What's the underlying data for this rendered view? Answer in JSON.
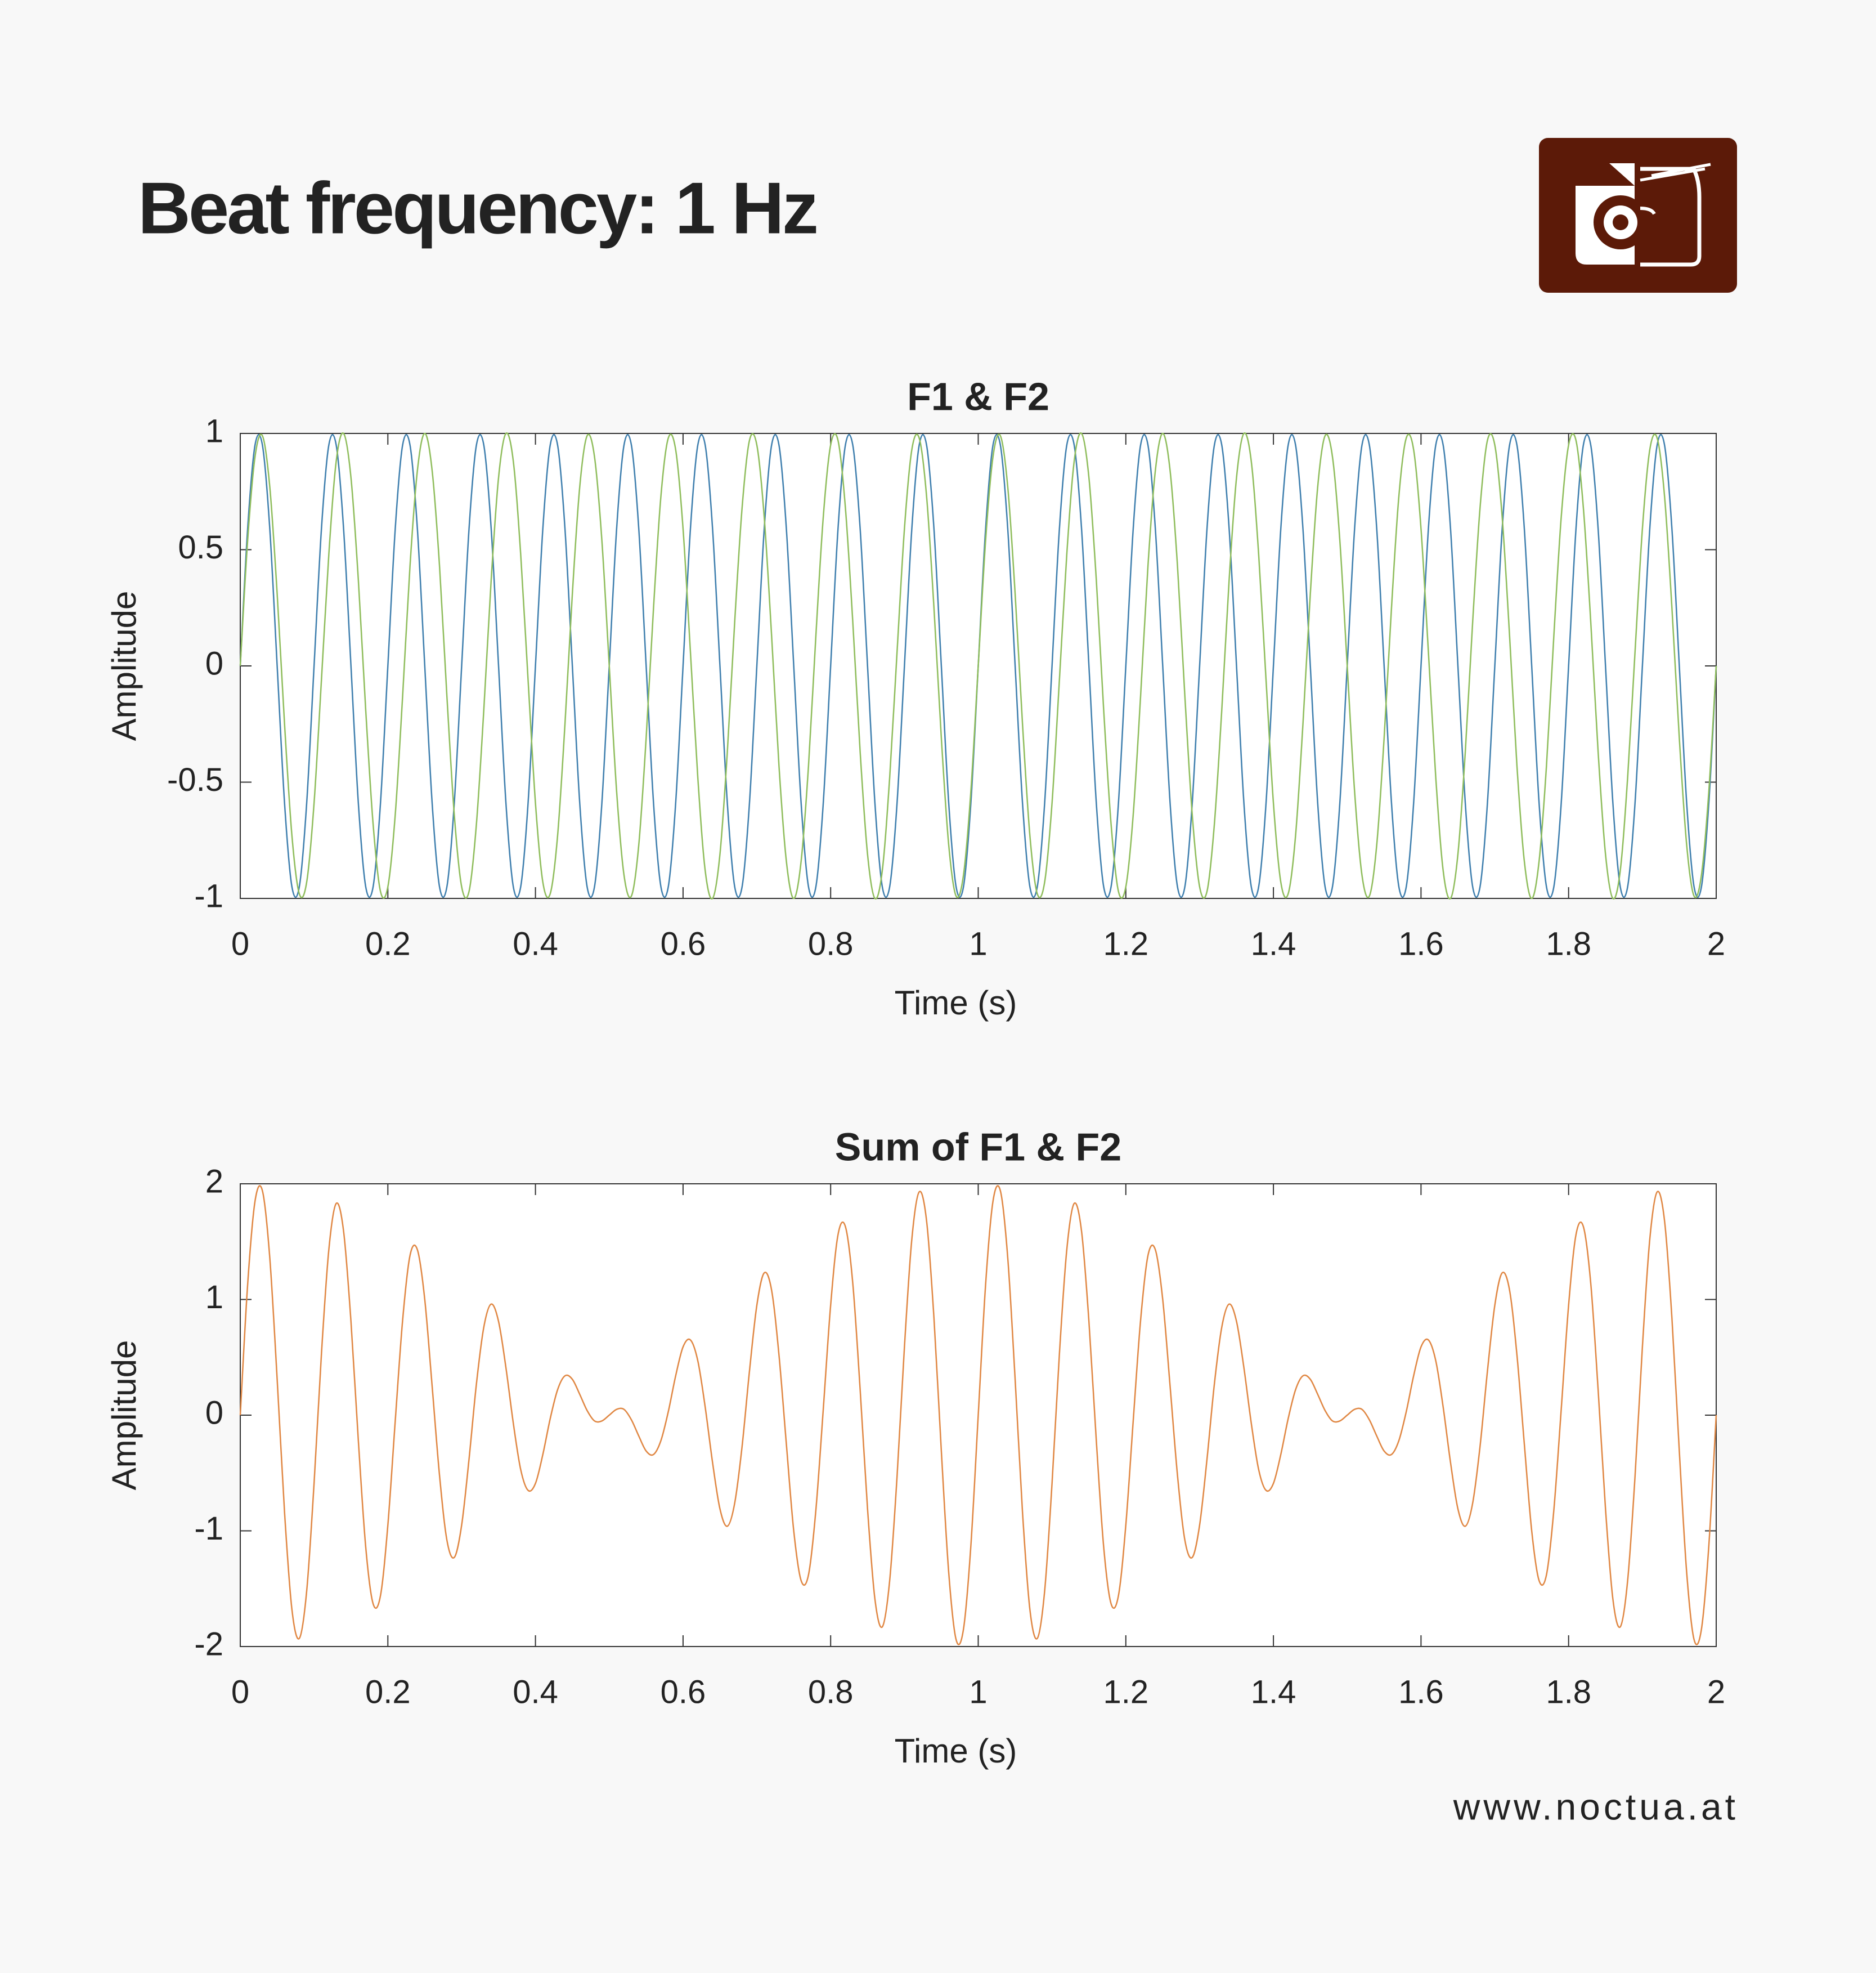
{
  "header": {
    "title": "Beat frequency: 1 Hz"
  },
  "footer": {
    "url": "www.noctua.at"
  },
  "chart_data": [
    {
      "type": "line",
      "title": "F1 & F2",
      "x_label": "Time (s)",
      "y_label": "Amplitude",
      "xlim": [
        0,
        2
      ],
      "ylim": [
        -1,
        1
      ],
      "xticks": [
        0,
        0.2,
        0.4,
        0.6,
        0.8,
        1,
        1.2,
        1.4,
        1.6,
        1.8,
        2
      ],
      "yticks": [
        -1,
        -0.5,
        0,
        0.5,
        1
      ],
      "x": [
        0,
        0.01,
        0.02,
        0.03,
        0.04,
        0.05,
        0.06,
        0.07,
        0.08,
        0.09,
        0.1,
        0.11,
        0.12,
        0.13,
        0.14,
        0.15,
        0.16,
        0.17,
        0.18,
        0.19,
        0.2,
        0.21,
        0.22,
        0.23,
        0.24,
        0.25,
        0.26,
        0.27,
        0.28,
        0.29,
        0.3,
        0.31,
        0.32,
        0.33,
        0.34,
        0.35,
        0.36,
        0.37,
        0.38,
        0.39,
        0.4,
        0.41,
        0.42,
        0.43,
        0.44,
        0.45,
        0.46,
        0.47,
        0.48,
        0.49,
        0.5,
        0.51,
        0.52,
        0.53,
        0.54,
        0.55,
        0.56,
        0.57,
        0.58,
        0.59,
        0.6,
        0.61,
        0.62,
        0.63,
        0.64,
        0.65,
        0.66,
        0.67,
        0.68,
        0.69,
        0.7,
        0.71,
        0.72,
        0.73,
        0.74,
        0.75,
        0.76,
        0.77,
        0.78,
        0.79,
        0.8,
        0.81,
        0.82,
        0.83,
        0.84,
        0.85,
        0.86,
        0.87,
        0.88,
        0.89,
        0.9,
        0.91,
        0.92,
        0.93,
        0.94,
        0.95,
        0.96,
        0.97,
        0.98,
        0.99,
        1,
        1.01,
        1.02,
        1.03,
        1.04,
        1.05,
        1.06,
        1.07,
        1.08,
        1.09,
        1.1,
        1.11,
        1.12,
        1.13,
        1.14,
        1.15,
        1.16,
        1.17,
        1.18,
        1.19,
        1.2,
        1.21,
        1.22,
        1.23,
        1.24,
        1.25,
        1.26,
        1.27,
        1.28,
        1.29,
        1.3,
        1.31,
        1.32,
        1.33,
        1.34,
        1.35,
        1.36,
        1.37,
        1.38,
        1.39,
        1.4,
        1.41,
        1.42,
        1.43,
        1.44,
        1.45,
        1.46,
        1.47,
        1.48,
        1.49,
        1.5,
        1.51,
        1.52,
        1.53,
        1.54,
        1.55,
        1.56,
        1.57,
        1.58,
        1.59,
        1.6,
        1.61,
        1.62,
        1.63,
        1.64,
        1.65,
        1.66,
        1.67,
        1.68,
        1.69,
        1.7,
        1.71,
        1.72,
        1.73,
        1.74,
        1.75,
        1.76,
        1.77,
        1.78,
        1.79,
        1.8,
        1.81,
        1.82,
        1.83,
        1.84,
        1.85,
        1.86,
        1.87,
        1.88,
        1.89,
        1.9,
        1.91,
        1.92,
        1.93,
        1.94,
        1.95,
        1.96,
        1.97,
        1.98,
        1.99,
        2
      ],
      "series": [
        {
          "color": "#3f7fae",
          "values": [
            0,
            0.59,
            0.95,
            0.95,
            0.59,
            0,
            -0.59,
            -0.95,
            -0.95,
            -0.59,
            0,
            0.59,
            0.95,
            0.95,
            0.59,
            0,
            -0.59,
            -0.95,
            -0.95,
            -0.59,
            0,
            0.59,
            0.95,
            0.95,
            0.59,
            0,
            -0.59,
            -0.95,
            -0.95,
            -0.59,
            0,
            0.59,
            0.95,
            0.95,
            0.59,
            0,
            -0.59,
            -0.95,
            -0.95,
            -0.59,
            0,
            0.59,
            0.95,
            0.95,
            0.59,
            0,
            -0.59,
            -0.95,
            -0.95,
            -0.59,
            0,
            0.59,
            0.95,
            0.95,
            0.59,
            0,
            -0.59,
            -0.95,
            -0.95,
            -0.59,
            0,
            0.59,
            0.95,
            0.95,
            0.59,
            0,
            -0.59,
            -0.95,
            -0.95,
            -0.59,
            0,
            0.59,
            0.95,
            0.95,
            0.59,
            0,
            -0.59,
            -0.95,
            -0.95,
            -0.59,
            0,
            0.59,
            0.95,
            0.95,
            0.59,
            0,
            -0.59,
            -0.95,
            -0.95,
            -0.59,
            0,
            0.59,
            0.95,
            0.95,
            0.59,
            0,
            -0.59,
            -0.95,
            -0.95,
            -0.59,
            0,
            0.59,
            0.95,
            0.95,
            0.59,
            0,
            -0.59,
            -0.95,
            -0.95,
            -0.59,
            0,
            0.59,
            0.95,
            0.95,
            0.59,
            0,
            -0.59,
            -0.95,
            -0.95,
            -0.59,
            0,
            0.59,
            0.95,
            0.95,
            0.59,
            0,
            -0.59,
            -0.95,
            -0.95,
            -0.59,
            0,
            0.59,
            0.95,
            0.95,
            0.59,
            0,
            -0.59,
            -0.95,
            -0.95,
            -0.59,
            0,
            0.59,
            0.95,
            0.95,
            0.59,
            0,
            -0.59,
            -0.95,
            -0.95,
            -0.59,
            0,
            0.59,
            0.95,
            0.95,
            0.59,
            0,
            -0.59,
            -0.95,
            -0.95,
            -0.59,
            0,
            0.59,
            0.95,
            0.95,
            0.59,
            0,
            -0.59,
            -0.95,
            -0.95,
            -0.59,
            0,
            0.59,
            0.95,
            0.95,
            0.59,
            0,
            -0.59,
            -0.95,
            -0.95,
            -0.59,
            0,
            0.59,
            0.95,
            0.95,
            0.59,
            0,
            -0.59,
            -0.95,
            -0.95,
            -0.59,
            0,
            0.59,
            0.95,
            0.95,
            0.59,
            0,
            -0.59,
            -0.95,
            -0.95,
            -0.59,
            0
          ]
        },
        {
          "color": "#8fbd5c",
          "values": [
            0,
            0.54,
            0.9,
            0.99,
            0.77,
            0.31,
            -0.25,
            -0.73,
            -0.98,
            -0.93,
            -0.59,
            -0.06,
            0.48,
            0.88,
            1,
            0.81,
            0.37,
            -0.19,
            -0.68,
            -0.97,
            -0.95,
            -0.64,
            -0.13,
            0.43,
            0.84,
            1,
            0.84,
            0.43,
            -0.13,
            -0.64,
            -0.95,
            -0.97,
            -0.68,
            -0.19,
            0.37,
            0.81,
            1,
            0.88,
            0.48,
            -0.06,
            -0.59,
            -0.93,
            -0.98,
            -0.73,
            -0.25,
            0.31,
            0.77,
            0.99,
            0.9,
            0.54,
            0,
            -0.54,
            -0.9,
            -0.99,
            -0.77,
            -0.31,
            0.25,
            0.73,
            0.98,
            0.93,
            0.59,
            0.06,
            -0.48,
            -0.88,
            -1,
            -0.81,
            -0.37,
            0.19,
            0.68,
            0.97,
            0.95,
            0.64,
            0.13,
            -0.43,
            -0.84,
            -1,
            -0.84,
            -0.43,
            0.13,
            0.64,
            0.95,
            0.97,
            0.68,
            0.19,
            -0.37,
            -0.81,
            -1,
            -0.88,
            -0.48,
            0.06,
            0.59,
            0.93,
            0.98,
            0.73,
            0.25,
            -0.31,
            -0.77,
            -0.99,
            -0.9,
            -0.54,
            0,
            0.54,
            0.9,
            0.99,
            0.77,
            0.31,
            -0.25,
            -0.73,
            -0.98,
            -0.93,
            -0.59,
            -0.06,
            0.48,
            0.88,
            1,
            0.81,
            0.37,
            -0.19,
            -0.68,
            -0.97,
            -0.95,
            -0.64,
            -0.13,
            0.43,
            0.84,
            1,
            0.84,
            0.43,
            -0.13,
            -0.64,
            -0.95,
            -0.97,
            -0.68,
            -0.19,
            0.37,
            0.81,
            1,
            0.88,
            0.48,
            -0.06,
            -0.59,
            -0.93,
            -0.98,
            -0.73,
            -0.25,
            0.31,
            0.77,
            0.99,
            0.9,
            0.54,
            0,
            -0.54,
            -0.9,
            -0.99,
            -0.77,
            -0.31,
            0.25,
            0.73,
            0.98,
            0.93,
            0.59,
            0.06,
            -0.48,
            -0.88,
            -1,
            -0.81,
            -0.37,
            0.19,
            0.68,
            0.97,
            0.95,
            0.64,
            0.13,
            -0.43,
            -0.84,
            -1,
            -0.84,
            -0.43,
            0.13,
            0.64,
            0.95,
            0.97,
            0.68,
            0.19,
            -0.37,
            -0.81,
            -1,
            -0.88,
            -0.48,
            0.06,
            0.59,
            0.93,
            0.98,
            0.73,
            0.25,
            -0.31,
            -0.77,
            -0.99,
            -0.9,
            -0.54,
            0
          ]
        }
      ]
    },
    {
      "type": "line",
      "title": "Sum of F1 & F2",
      "x_label": "Time (s)",
      "y_label": "Amplitude",
      "xlim": [
        0,
        2
      ],
      "ylim": [
        -2,
        2
      ],
      "xticks": [
        0,
        0.2,
        0.4,
        0.6,
        0.8,
        1,
        1.2,
        1.4,
        1.6,
        1.8,
        2
      ],
      "yticks": [
        -2,
        -1,
        0,
        1,
        2
      ],
      "x": [
        0,
        0.01,
        0.02,
        0.03,
        0.04,
        0.05,
        0.06,
        0.07,
        0.08,
        0.09,
        0.1,
        0.11,
        0.12,
        0.13,
        0.14,
        0.15,
        0.16,
        0.17,
        0.18,
        0.19,
        0.2,
        0.21,
        0.22,
        0.23,
        0.24,
        0.25,
        0.26,
        0.27,
        0.28,
        0.29,
        0.3,
        0.31,
        0.32,
        0.33,
        0.34,
        0.35,
        0.36,
        0.37,
        0.38,
        0.39,
        0.4,
        0.41,
        0.42,
        0.43,
        0.44,
        0.45,
        0.46,
        0.47,
        0.48,
        0.49,
        0.5,
        0.51,
        0.52,
        0.53,
        0.54,
        0.55,
        0.56,
        0.57,
        0.58,
        0.59,
        0.6,
        0.61,
        0.62,
        0.63,
        0.64,
        0.65,
        0.66,
        0.67,
        0.68,
        0.69,
        0.7,
        0.71,
        0.72,
        0.73,
        0.74,
        0.75,
        0.76,
        0.77,
        0.78,
        0.79,
        0.8,
        0.81,
        0.82,
        0.83,
        0.84,
        0.85,
        0.86,
        0.87,
        0.88,
        0.89,
        0.9,
        0.91,
        0.92,
        0.93,
        0.94,
        0.95,
        0.96,
        0.97,
        0.98,
        0.99,
        1,
        1.01,
        1.02,
        1.03,
        1.04,
        1.05,
        1.06,
        1.07,
        1.08,
        1.09,
        1.1,
        1.11,
        1.12,
        1.13,
        1.14,
        1.15,
        1.16,
        1.17,
        1.18,
        1.19,
        1.2,
        1.21,
        1.22,
        1.23,
        1.24,
        1.25,
        1.26,
        1.27,
        1.28,
        1.29,
        1.3,
        1.31,
        1.32,
        1.33,
        1.34,
        1.35,
        1.36,
        1.37,
        1.38,
        1.39,
        1.4,
        1.41,
        1.42,
        1.43,
        1.44,
        1.45,
        1.46,
        1.47,
        1.48,
        1.49,
        1.5,
        1.51,
        1.52,
        1.53,
        1.54,
        1.55,
        1.56,
        1.57,
        1.58,
        1.59,
        1.6,
        1.61,
        1.62,
        1.63,
        1.64,
        1.65,
        1.66,
        1.67,
        1.68,
        1.69,
        1.7,
        1.71,
        1.72,
        1.73,
        1.74,
        1.75,
        1.76,
        1.77,
        1.78,
        1.79,
        1.8,
        1.81,
        1.82,
        1.83,
        1.84,
        1.85,
        1.86,
        1.87,
        1.88,
        1.89,
        1.9,
        1.91,
        1.92,
        1.93,
        1.94,
        1.95,
        1.96,
        1.97,
        1.98,
        1.99,
        2
      ],
      "series": [
        {
          "color": "#e08743",
          "values": [
            0,
            1.13,
            1.85,
            1.94,
            1.36,
            0.31,
            -0.84,
            -1.68,
            -1.93,
            -1.52,
            -0.59,
            0.53,
            1.43,
            1.83,
            1.59,
            0.81,
            -0.22,
            -1.14,
            -1.63,
            -1.56,
            -0.95,
            -0.05,
            0.82,
            1.38,
            1.43,
            1,
            0.25,
            -0.52,
            -1.08,
            -1.23,
            -0.95,
            -0.38,
            0.27,
            0.76,
            0.96,
            0.81,
            0.41,
            -0.07,
            -0.47,
            -0.65,
            -0.59,
            -0.34,
            -0.03,
            0.22,
            0.34,
            0.31,
            0.18,
            0.04,
            -0.05,
            -0.05,
            0,
            0.05,
            0.05,
            -0.04,
            -0.18,
            -0.31,
            -0.34,
            -0.22,
            0.03,
            0.34,
            0.59,
            0.65,
            0.47,
            0.07,
            -0.41,
            -0.81,
            -0.96,
            -0.76,
            -0.27,
            0.38,
            0.95,
            1.23,
            1.08,
            0.52,
            -0.25,
            -1,
            -1.43,
            -1.38,
            -0.82,
            0.05,
            0.95,
            1.56,
            1.63,
            1.14,
            0.22,
            -0.81,
            -1.59,
            -1.83,
            -1.43,
            -0.53,
            0.59,
            1.52,
            1.93,
            1.68,
            0.84,
            -0.31,
            -1.36,
            -1.94,
            -1.85,
            -1.13,
            0,
            1.13,
            1.85,
            1.94,
            1.36,
            0.31,
            -0.84,
            -1.68,
            -1.93,
            -1.52,
            -0.59,
            0.53,
            1.43,
            1.83,
            1.59,
            0.81,
            -0.22,
            -1.14,
            -1.63,
            -1.56,
            -0.95,
            -0.05,
            0.82,
            1.38,
            1.43,
            1,
            0.25,
            -0.52,
            -1.08,
            -1.23,
            -0.95,
            -0.38,
            0.27,
            0.76,
            0.96,
            0.81,
            0.41,
            -0.07,
            -0.47,
            -0.65,
            -0.59,
            -0.34,
            -0.03,
            0.22,
            0.34,
            0.31,
            0.18,
            0.04,
            -0.05,
            -0.05,
            0,
            0.05,
            0.05,
            -0.04,
            -0.18,
            -0.31,
            -0.34,
            -0.22,
            0.03,
            0.34,
            0.59,
            0.65,
            0.47,
            0.07,
            -0.41,
            -0.81,
            -0.96,
            -0.76,
            -0.27,
            0.38,
            0.95,
            1.23,
            1.08,
            0.52,
            -0.25,
            -1,
            -1.43,
            -1.38,
            -0.82,
            0.05,
            0.95,
            1.56,
            1.63,
            1.14,
            0.22,
            -0.81,
            -1.59,
            -1.83,
            -1.43,
            -0.53,
            0.59,
            1.52,
            1.93,
            1.68,
            0.84,
            -0.31,
            -1.36,
            -1.94,
            -1.85,
            -1.13,
            0
          ]
        }
      ]
    }
  ]
}
